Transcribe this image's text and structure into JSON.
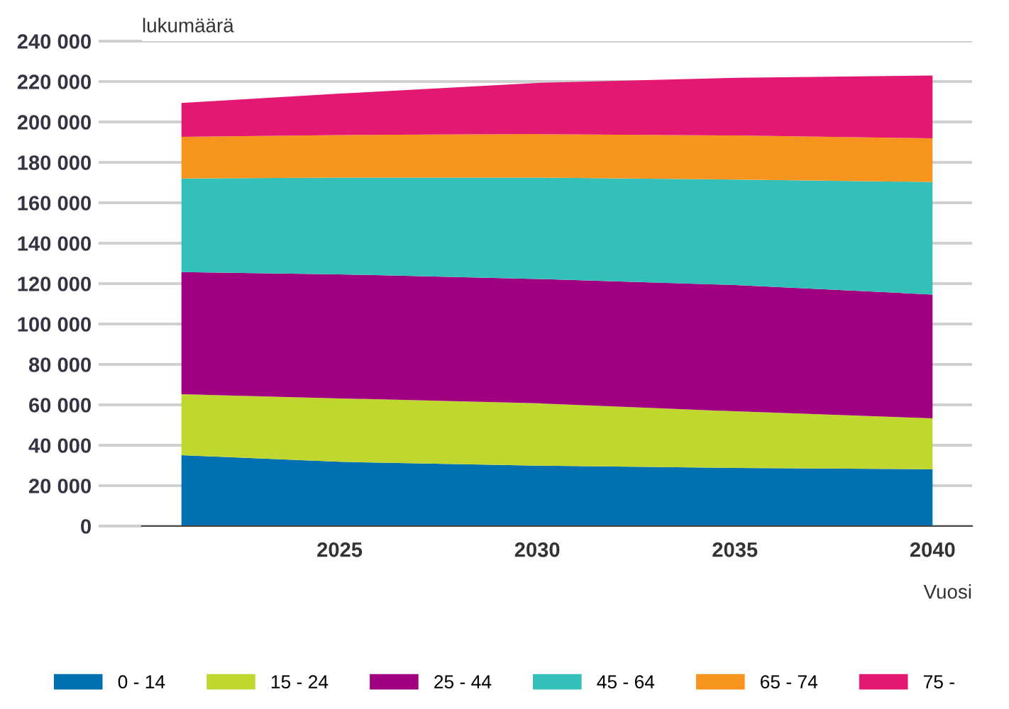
{
  "chart_data": {
    "type": "area",
    "stacked": true,
    "ylabel": "lukumäärä",
    "xlabel": "Vuosi",
    "x": [
      2021,
      2025,
      2030,
      2035,
      2040
    ],
    "series": [
      {
        "name": "0 - 14",
        "color": "#0070b0",
        "values": [
          35100,
          31800,
          29900,
          28800,
          28100
        ]
      },
      {
        "name": "15 - 24",
        "color": "#c0d72f",
        "values": [
          30200,
          31400,
          30900,
          28000,
          25200
        ]
      },
      {
        "name": "25 - 44",
        "color": "#a0007f",
        "values": [
          60400,
          61400,
          61500,
          62500,
          61300
        ]
      },
      {
        "name": "45 - 64",
        "color": "#33c0b8",
        "values": [
          46300,
          47900,
          50200,
          52200,
          55700
        ]
      },
      {
        "name": "65 - 74",
        "color": "#f7941d",
        "values": [
          20600,
          21000,
          21500,
          21800,
          21600
        ]
      },
      {
        "name": "75 -",
        "color": "#e31873",
        "values": [
          16800,
          20500,
          25300,
          28500,
          31100
        ]
      }
    ],
    "xlim": [
      2020,
      2041
    ],
    "xticks": [
      2025,
      2030,
      2035,
      2040
    ],
    "ylim": [
      0,
      240000
    ],
    "yticks": [
      {
        "value": 0,
        "label": "0"
      },
      {
        "value": 20000,
        "label": "20 000"
      },
      {
        "value": 40000,
        "label": "40 000"
      },
      {
        "value": 60000,
        "label": "60 000"
      },
      {
        "value": 80000,
        "label": "80 000"
      },
      {
        "value": 100000,
        "label": "100 000"
      },
      {
        "value": 120000,
        "label": "120 000"
      },
      {
        "value": 140000,
        "label": "140 000"
      },
      {
        "value": 160000,
        "label": "160 000"
      },
      {
        "value": 180000,
        "label": "180 000"
      },
      {
        "value": 200000,
        "label": "200 000"
      },
      {
        "value": 220000,
        "label": "220 000"
      },
      {
        "value": 240000,
        "label": "240 000"
      }
    ],
    "grid": "y",
    "legend": "bottom"
  }
}
